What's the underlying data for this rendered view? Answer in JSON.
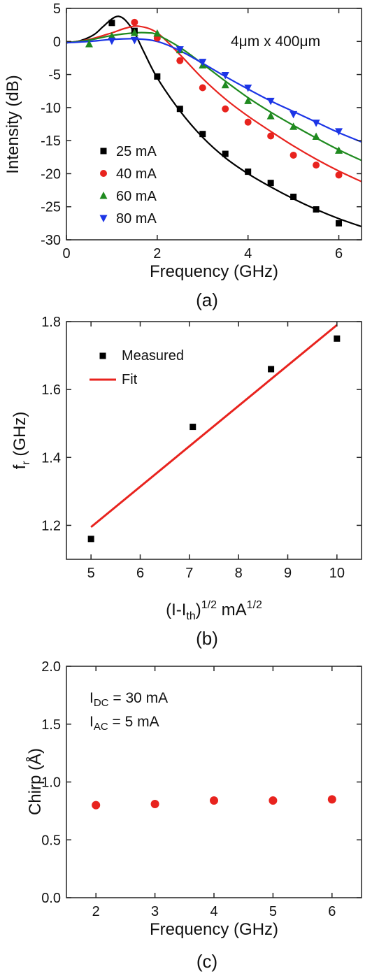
{
  "chart_data": [
    {
      "type": "scatter",
      "panel_label": "(a)",
      "xlabel": "Frequency (GHz)",
      "ylabel": "Intensity (dB)",
      "xlim": [
        0,
        6.5
      ],
      "ylim": [
        -30,
        5
      ],
      "xticks": [
        0,
        2,
        4,
        6
      ],
      "yticks": [
        5,
        0,
        -5,
        -10,
        -15,
        -20,
        -25,
        -30
      ],
      "annotation": "4μm x 400μm",
      "legend_position": "bottom-left",
      "series": [
        {
          "name": "25 mA",
          "marker": "square",
          "color": "#000000",
          "x": [
            1.0,
            1.5,
            2.0,
            2.5,
            3.0,
            3.5,
            4.0,
            4.5,
            5.0,
            5.5,
            6.0
          ],
          "y": [
            2.8,
            1.6,
            -5.3,
            -10.2,
            -14.0,
            -17.0,
            -19.7,
            -21.4,
            -23.5,
            -25.4,
            -27.5
          ],
          "fit_x": [
            0,
            0.3,
            0.6,
            0.8,
            1.0,
            1.15,
            1.3,
            1.5,
            1.7,
            2.0,
            2.5,
            3.0,
            3.5,
            4.0,
            4.5,
            5.0,
            5.5,
            6.0,
            6.5
          ],
          "fit_y": [
            -0.2,
            0.1,
            1.0,
            2.2,
            3.4,
            3.8,
            3.2,
            1.3,
            -1.5,
            -5.5,
            -10.5,
            -14.5,
            -17.6,
            -20.0,
            -22.0,
            -23.8,
            -25.4,
            -26.8,
            -28.0
          ]
        },
        {
          "name": "40 mA",
          "marker": "circle",
          "color": "#e8231e",
          "x": [
            1.5,
            2.0,
            2.5,
            3.0,
            3.5,
            4.0,
            4.5,
            5.0,
            5.5,
            6.0
          ],
          "y": [
            2.9,
            0.5,
            -2.9,
            -7.0,
            -10.2,
            -12.2,
            -14.3,
            -17.2,
            -18.7,
            -20.2
          ],
          "fit_x": [
            0,
            0.5,
            1.0,
            1.3,
            1.6,
            2.0,
            2.5,
            3.0,
            3.5,
            4.0,
            4.5,
            5.0,
            5.5,
            6.0,
            6.5
          ],
          "fit_y": [
            -0.2,
            0.3,
            1.3,
            2.0,
            2.3,
            1.3,
            -2.0,
            -5.6,
            -8.7,
            -11.3,
            -13.6,
            -15.8,
            -17.8,
            -19.6,
            -21.2
          ]
        },
        {
          "name": "60 mA",
          "marker": "triangle-up",
          "color": "#1f8a1f",
          "x": [
            0.5,
            1.0,
            1.5,
            2.0,
            2.5,
            3.0,
            3.5,
            4.0,
            4.5,
            5.0,
            5.5,
            6.0
          ],
          "y": [
            -0.4,
            0.8,
            1.3,
            1.2,
            -1.3,
            -3.6,
            -6.6,
            -9.0,
            -11.3,
            -12.9,
            -14.4,
            -16.5
          ],
          "fit_x": [
            0,
            0.5,
            1.0,
            1.5,
            1.8,
            2.0,
            2.5,
            3.0,
            3.5,
            4.0,
            4.5,
            5.0,
            5.5,
            6.0,
            6.5
          ],
          "fit_y": [
            -0.2,
            0.2,
            0.9,
            1.3,
            1.3,
            1.0,
            -0.9,
            -3.4,
            -6.0,
            -8.5,
            -10.7,
            -12.7,
            -14.6,
            -16.4,
            -18.0
          ]
        },
        {
          "name": "80 mA",
          "marker": "triangle-down",
          "color": "#1c35e6",
          "x": [
            1.0,
            1.5,
            2.5,
            3.0,
            3.5,
            4.0,
            4.5,
            5.0,
            5.5,
            6.0
          ],
          "y": [
            0.1,
            0.2,
            -1.2,
            -3.1,
            -5.1,
            -7.0,
            -9.0,
            -11.0,
            -12.3,
            -13.6
          ],
          "fit_x": [
            0,
            0.5,
            1.0,
            1.5,
            2.0,
            2.5,
            3.0,
            3.5,
            4.0,
            4.5,
            5.0,
            5.5,
            6.0,
            6.5
          ],
          "fit_y": [
            -0.2,
            0.0,
            0.3,
            0.4,
            0.0,
            -1.4,
            -3.3,
            -5.3,
            -7.2,
            -9.0,
            -10.6,
            -12.2,
            -13.8,
            -15.2
          ]
        }
      ]
    },
    {
      "type": "scatter",
      "panel_label": "(b)",
      "xlabel_main": "(I-I",
      "xlabel_sub": "th",
      "xlabel_mid": ")",
      "xlabel_sup1": "1/2",
      "xlabel_unit": " mA",
      "xlabel_sup2": "1/2",
      "ylabel_main": "f",
      "ylabel_sub": "r",
      "ylabel_unit": " (GHz)",
      "xlim": [
        4.5,
        10.5
      ],
      "ylim": [
        1.1,
        1.8
      ],
      "xticks": [
        5,
        6,
        7,
        8,
        9,
        10
      ],
      "yticks": [
        1.2,
        1.4,
        1.6,
        1.8
      ],
      "legend_position": "top-left",
      "series": [
        {
          "name": "Measured",
          "marker": "square",
          "color": "#000000",
          "x": [
            5.0,
            7.07,
            8.66,
            10.0
          ],
          "y": [
            1.16,
            1.49,
            1.66,
            1.75
          ]
        },
        {
          "name": "Fit",
          "marker": "line",
          "color": "#e8231e",
          "x": [
            5.0,
            10.0
          ],
          "y": [
            1.195,
            1.79
          ]
        }
      ]
    },
    {
      "type": "scatter",
      "panel_label": "(c)",
      "xlabel": "Frequency (GHz)",
      "ylabel": "Chirp (Å)",
      "xlim": [
        1.5,
        6.5
      ],
      "ylim": [
        0.0,
        2.0
      ],
      "xticks": [
        2,
        3,
        4,
        5,
        6
      ],
      "yticks": [
        "0.0",
        "0.5",
        "1.0",
        "1.5",
        "2.0"
      ],
      "annotation_1_main": "I",
      "annotation_1_sub": "DC",
      "annotation_1_rest": " = 30 mA",
      "annotation_2_main": "I",
      "annotation_2_sub": "AC",
      "annotation_2_rest": " = 5 mA",
      "series": [
        {
          "marker": "circle",
          "color": "#e8231e",
          "x": [
            2,
            3,
            4,
            5,
            6
          ],
          "y": [
            0.8,
            0.81,
            0.84,
            0.84,
            0.85
          ]
        }
      ]
    }
  ]
}
